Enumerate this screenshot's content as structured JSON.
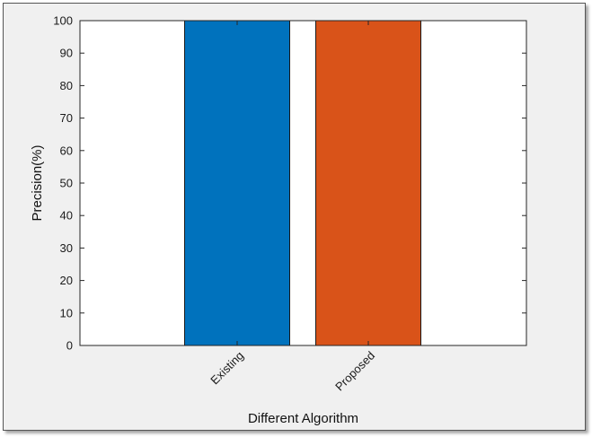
{
  "chart_data": {
    "type": "bar",
    "categories": [
      "Existing",
      "Proposed"
    ],
    "values": [
      100,
      100
    ],
    "bar_colors": [
      "#0072BD",
      "#D95319"
    ],
    "xlabel": "Different Algorithm",
    "ylabel": "Precision(%)",
    "ylim": [
      0,
      100
    ],
    "yticks": [
      0,
      10,
      20,
      30,
      40,
      50,
      60,
      70,
      80,
      90,
      100
    ],
    "grid": false,
    "legend": "none"
  },
  "colors": {
    "figure_background": "#f0f0f0",
    "axes_background": "#ffffff"
  }
}
